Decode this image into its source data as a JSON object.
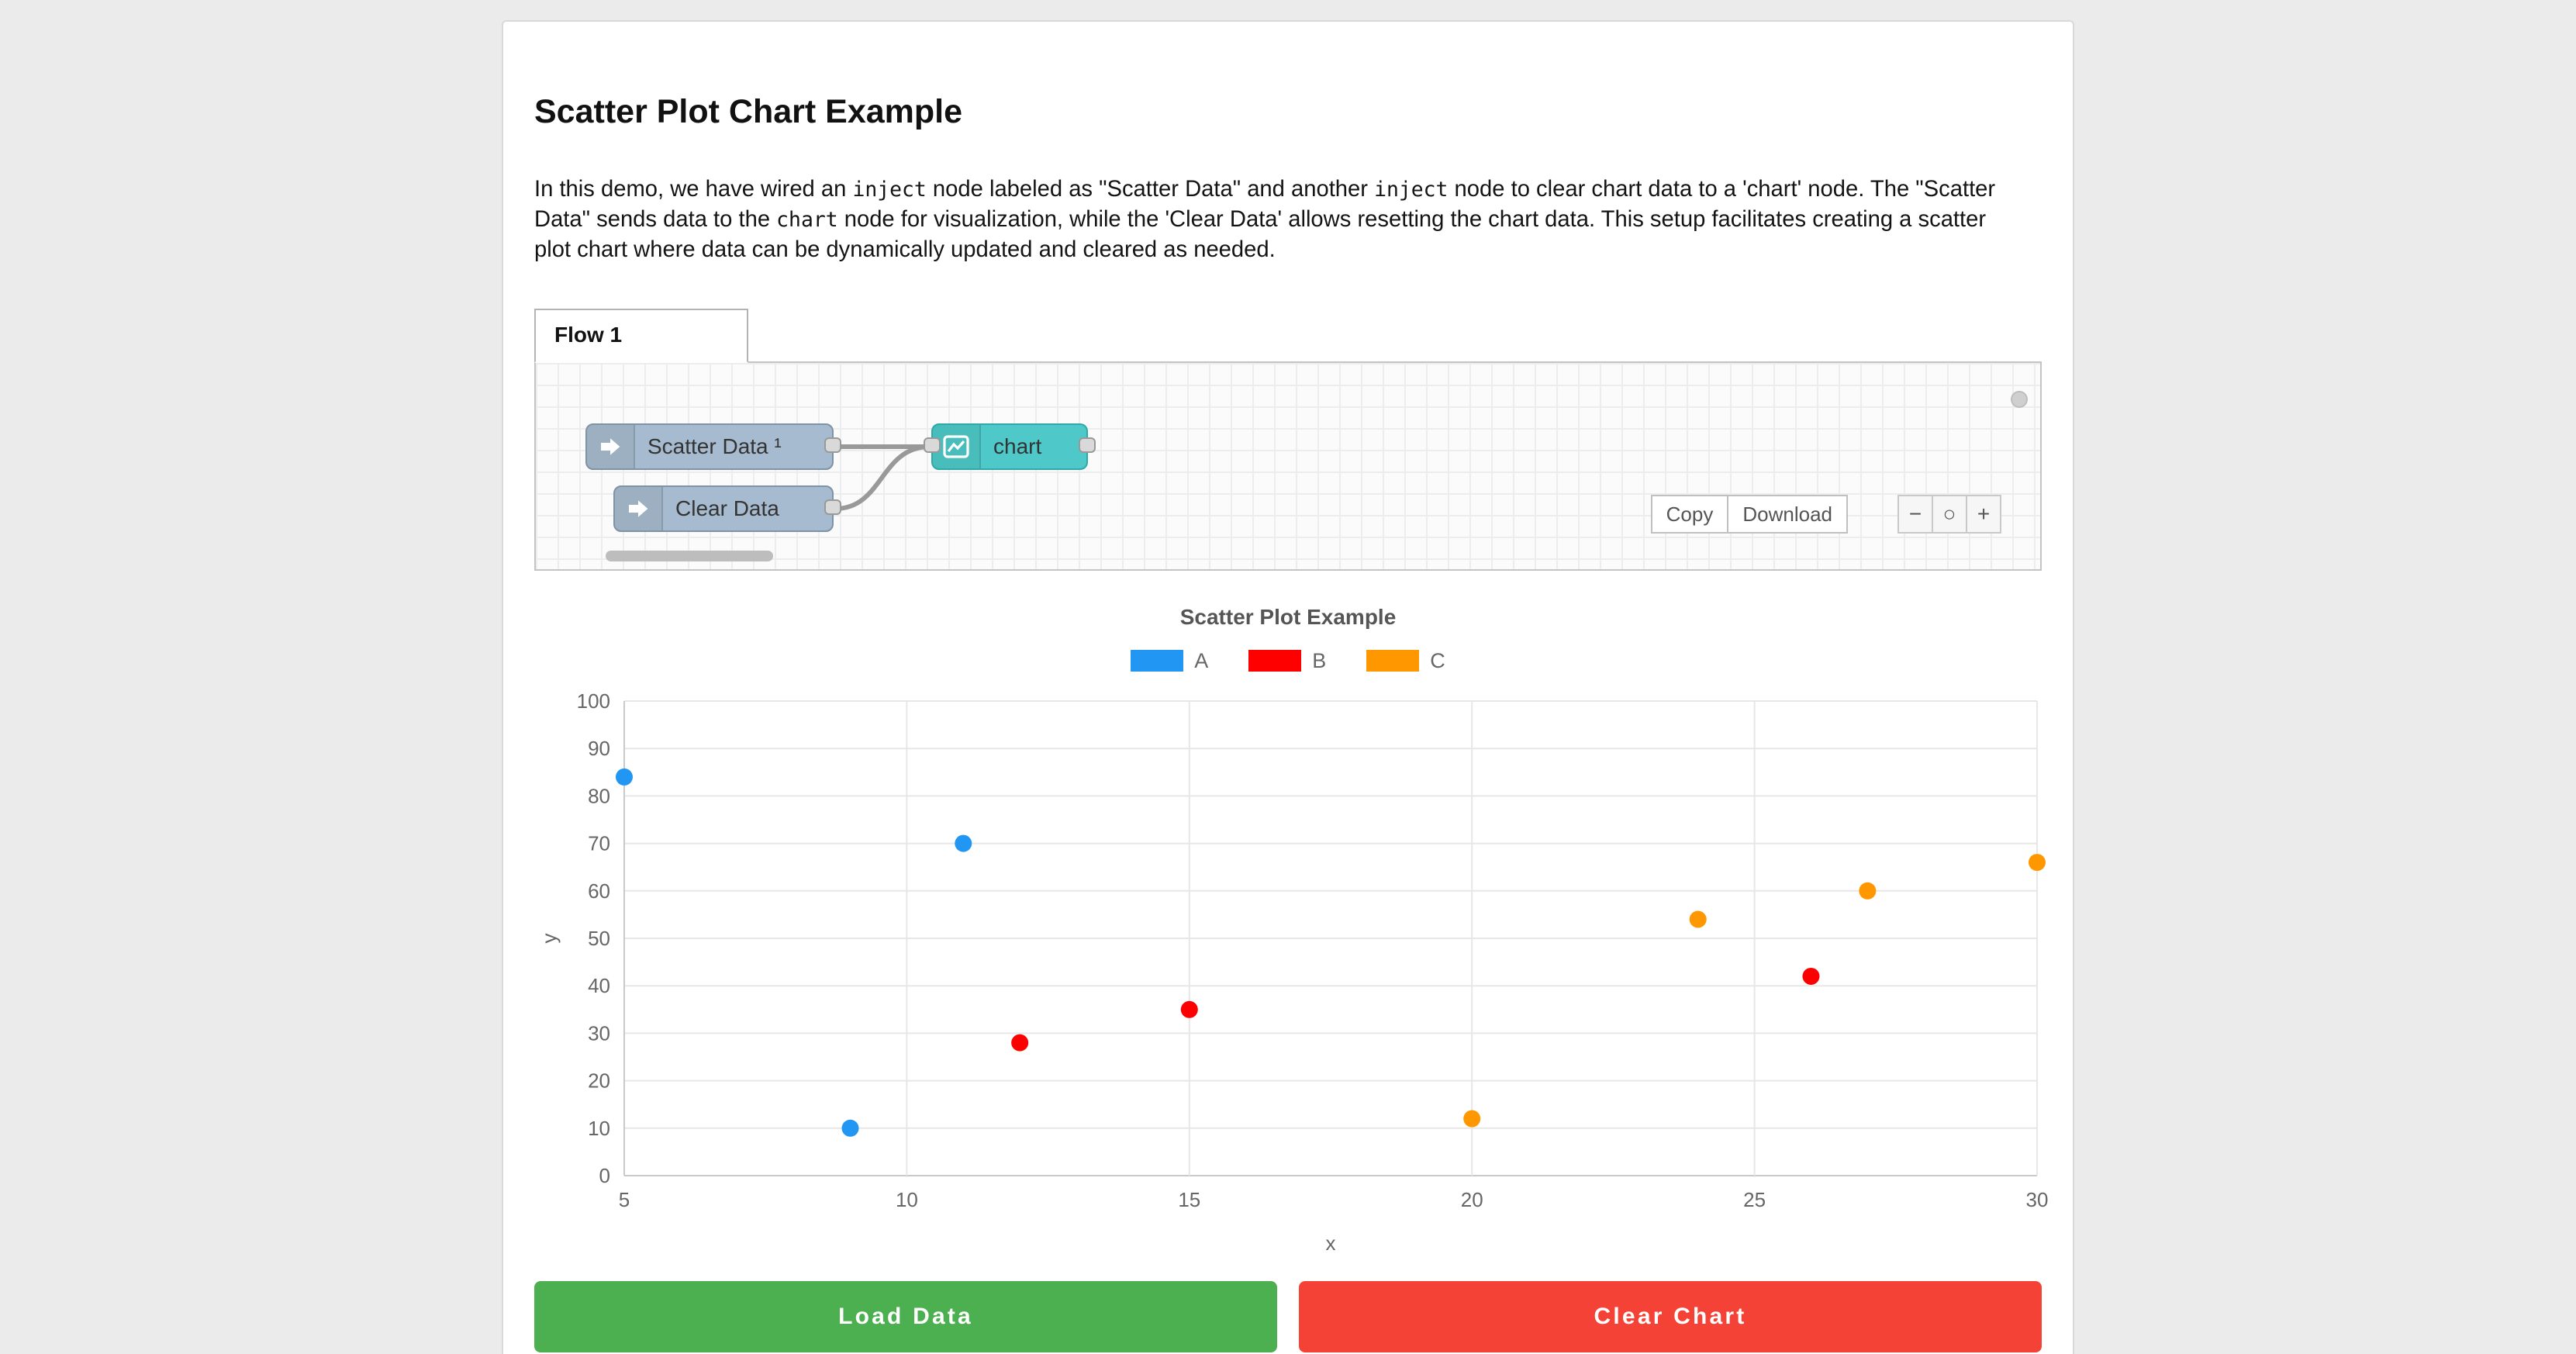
{
  "page": {
    "title": "Scatter Plot Chart Example"
  },
  "intro": {
    "segments": [
      {
        "type": "text",
        "text": "In this demo, we have wired an "
      },
      {
        "type": "code",
        "text": "inject"
      },
      {
        "type": "text",
        "text": " node labeled as \"Scatter Data\" and another "
      },
      {
        "type": "code",
        "text": "inject"
      },
      {
        "type": "text",
        "text": " node to clear chart data to a 'chart' node. The \"Scatter Data\" sends data to the "
      },
      {
        "type": "code",
        "text": "chart"
      },
      {
        "type": "text",
        "text": " node for visualization, while the 'Clear Data' allows resetting the chart data. This setup facilitates creating a scatter plot chart where data can be dynamically updated and cleared as needed."
      }
    ]
  },
  "flow": {
    "tab_label": "Flow 1",
    "nodes": [
      {
        "id": "scatter-data",
        "label": "Scatter Data ¹",
        "type": "inject",
        "color": "#a6bbcf"
      },
      {
        "id": "clear-data",
        "label": "Clear Data",
        "type": "inject",
        "color": "#a6bbcf"
      },
      {
        "id": "chart",
        "label": "chart",
        "type": "chart",
        "color": "#4ec8c8"
      }
    ],
    "buttons": {
      "copy": "Copy",
      "download": "Download"
    },
    "zoom": {
      "out": "−",
      "reset": "○",
      "in": "+"
    }
  },
  "chart_data": {
    "type": "scatter",
    "title": "Scatter Plot Example",
    "xlabel": "x",
    "ylabel": "y",
    "xlim": [
      5,
      30
    ],
    "ylim": [
      0,
      100
    ],
    "xticks": [
      5,
      10,
      15,
      20,
      25,
      30
    ],
    "yticks": [
      0,
      10,
      20,
      30,
      40,
      50,
      60,
      70,
      80,
      90,
      100
    ],
    "grid": true,
    "legend_position": "top",
    "series": [
      {
        "name": "A",
        "color": "#2196f3",
        "points": [
          [
            5,
            84
          ],
          [
            9,
            10
          ],
          [
            11,
            70
          ]
        ]
      },
      {
        "name": "B",
        "color": "#ff0000",
        "points": [
          [
            12,
            28
          ],
          [
            15,
            35
          ],
          [
            26,
            42
          ]
        ]
      },
      {
        "name": "C",
        "color": "#ff9800",
        "points": [
          [
            20,
            12
          ],
          [
            24,
            54
          ],
          [
            27,
            60
          ],
          [
            30,
            66
          ]
        ]
      }
    ]
  },
  "actions": {
    "load": "Load Data",
    "load_color": "#4caf50",
    "clear": "Clear Chart",
    "clear_color": "#f44336"
  }
}
